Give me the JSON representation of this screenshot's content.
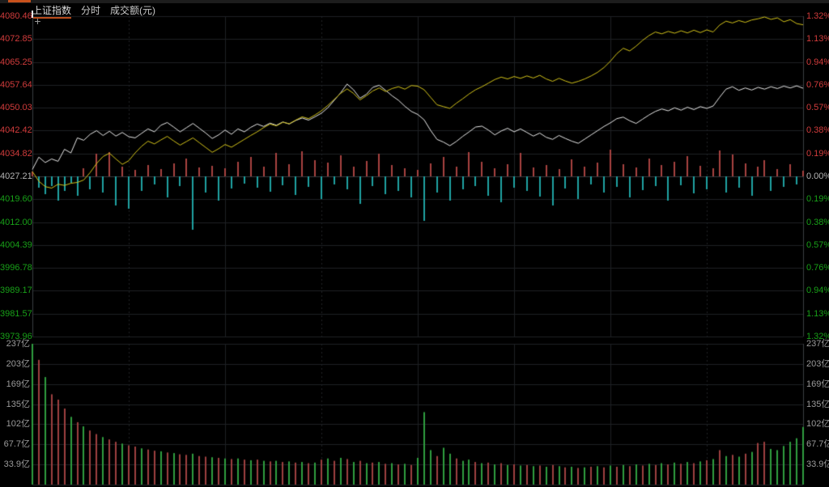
{
  "header": {
    "items": [
      {
        "label": "上证指数",
        "active": true
      },
      {
        "label": "分时",
        "active": false
      },
      {
        "label": "成交额(元)",
        "active": false
      }
    ]
  },
  "cursor": {
    "glyph": "+"
  },
  "colors": {
    "up": "#d23c3c",
    "down": "#18a018",
    "flat": "#b4b4b4",
    "volume_label": "#9a9a9a",
    "price_line": "#e8e8e8",
    "avg_line": "#d4c41a",
    "bar_up_red": "#a84341",
    "bar_down_teal": "#1fa3a3",
    "vol_up_red": "#9e4040",
    "vol_down_green": "#2f9e3f",
    "grid": "#1e2124",
    "grid_dashed": "#202326",
    "border": "#3a3e42",
    "zero_line": "#34383c",
    "accent_orange": "#c8511c"
  },
  "chart_data": {
    "type": "mixed",
    "title": "上证指数 分时 成交额(元)",
    "prev_close": 4027.21,
    "session_minutes": 242,
    "sample_interval_min": 2,
    "main_panel": {
      "type": "line",
      "y_range": [
        3973.96,
        4080.46
      ],
      "left_axis_labels": [
        "4080.46",
        "4072.85",
        "4065.25",
        "4057.64",
        "4050.03",
        "4042.42",
        "4034.82",
        "4027.21",
        "4019.60",
        "4012.00",
        "4004.39",
        "3996.78",
        "3989.17",
        "3981.57",
        "3973.96"
      ],
      "right_axis_labels": [
        "1.32%",
        "1.13%",
        "0.94%",
        "0.76%",
        "0.57%",
        "0.38%",
        "0.19%",
        "0.00%",
        "0.19%",
        "0.38%",
        "0.57%",
        "0.76%",
        "0.94%",
        "1.13%",
        "1.32%"
      ],
      "series": [
        {
          "name": "index_price_white",
          "type": "line",
          "values": [
            4029.5,
            4033.6,
            4031.8,
            4033.0,
            4032.2,
            4036.2,
            4035.0,
            4040.0,
            4039.2,
            4041.2,
            4042.4,
            4040.8,
            4042.2,
            4040.6,
            4041.8,
            4040.4,
            4040.0,
            4041.5,
            4043.0,
            4042.0,
            4044.2,
            4045.1,
            4043.6,
            4042.0,
            4043.4,
            4044.8,
            4043.2,
            4041.6,
            4039.8,
            4041.0,
            4042.6,
            4041.2,
            4043.0,
            4042.0,
            4043.5,
            4044.6,
            4043.8,
            4044.9,
            4044.2,
            4045.3,
            4044.6,
            4045.8,
            4046.6,
            4045.9,
            4047.0,
            4048.2,
            4050.0,
            4052.5,
            4055.0,
            4057.9,
            4056.0,
            4053.2,
            4054.5,
            4056.8,
            4057.5,
            4055.8,
            4054.0,
            4052.5,
            4050.5,
            4048.8,
            4047.8,
            4046.0,
            4042.5,
            4039.5,
            4038.6,
            4037.4,
            4038.8,
            4040.5,
            4042.0,
            4043.6,
            4043.9,
            4042.6,
            4041.0,
            4042.3,
            4043.2,
            4042.0,
            4043.0,
            4041.8,
            4040.6,
            4041.6,
            4040.2,
            4039.5,
            4040.8,
            4039.8,
            4038.9,
            4038.2,
            4039.6,
            4041.0,
            4042.4,
            4043.8,
            4045.0,
            4046.4,
            4046.9,
            4045.7,
            4044.8,
            4046.2,
            4047.6,
            4048.8,
            4049.6,
            4049.0,
            4050.0,
            4049.2,
            4050.2,
            4049.4,
            4050.4,
            4049.8,
            4050.6,
            4053.5,
            4056.2,
            4057.0,
            4055.8,
            4056.6,
            4055.9,
            4056.8,
            4056.2,
            4057.0,
            4056.4,
            4057.2,
            4056.6,
            4057.3,
            4056.5
          ]
        },
        {
          "name": "avg_index_yellow",
          "type": "line",
          "values": [
            4028.8,
            4025.6,
            4023.8,
            4023.3,
            4024.6,
            4024.2,
            4024.9,
            4025.2,
            4026.0,
            4028.5,
            4031.5,
            4033.8,
            4034.9,
            4033.0,
            4031.2,
            4032.4,
            4035.0,
            4037.2,
            4038.9,
            4038.0,
            4039.3,
            4040.5,
            4039.0,
            4037.6,
            4038.8,
            4040.0,
            4038.4,
            4036.8,
            4035.2,
            4036.4,
            4037.8,
            4036.9,
            4038.2,
            4039.5,
            4040.8,
            4042.0,
            4043.4,
            4044.6,
            4044.0,
            4045.2,
            4044.7,
            4045.9,
            4047.0,
            4046.4,
            4047.6,
            4049.0,
            4050.8,
            4052.8,
            4054.8,
            4056.3,
            4054.8,
            4052.6,
            4054.0,
            4055.6,
            4056.6,
            4055.4,
            4056.4,
            4057.0,
            4056.2,
            4057.4,
            4057.2,
            4056.0,
            4053.5,
            4051.0,
            4050.4,
            4049.8,
            4051.5,
            4053.0,
            4054.6,
            4056.0,
            4057.0,
            4058.2,
            4059.4,
            4060.2,
            4059.6,
            4060.4,
            4059.8,
            4060.6,
            4059.9,
            4060.8,
            4059.6,
            4058.8,
            4059.8,
            4058.9,
            4058.2,
            4058.8,
            4059.6,
            4060.6,
            4061.8,
            4063.4,
            4065.5,
            4068.0,
            4069.8,
            4068.9,
            4070.5,
            4072.4,
            4074.0,
            4075.2,
            4074.6,
            4075.4,
            4074.8,
            4075.6,
            4074.9,
            4075.8,
            4075.0,
            4075.9,
            4075.2,
            4077.5,
            4078.8,
            4078.2,
            4079.0,
            4078.4,
            4079.2,
            4079.6,
            4080.2,
            4079.4,
            4079.9,
            4078.6,
            4079.3,
            4078.0,
            4077.6
          ]
        },
        {
          "name": "net_minute_volume_bars",
          "type": "bar",
          "values": [
            6,
            -14,
            -22,
            -12,
            -30,
            -18,
            -8,
            -24,
            10,
            -16,
            28,
            -20,
            30,
            -36,
            12,
            -40,
            8,
            -18,
            14,
            -10,
            9,
            -26,
            16,
            -12,
            22,
            -66,
            11,
            -20,
            13,
            -30,
            10,
            -15,
            18,
            -9,
            24,
            -14,
            12,
            -19,
            29,
            -11,
            15,
            -23,
            31,
            -13,
            20,
            -28,
            17,
            -10,
            26,
            -16,
            12,
            -34,
            19,
            -12,
            28,
            -22,
            14,
            -18,
            10,
            -26,
            8,
            -55,
            16,
            -20,
            24,
            -30,
            12,
            -16,
            30,
            -12,
            18,
            -24,
            10,
            -32,
            15,
            -14,
            29,
            -18,
            11,
            -25,
            14,
            -36,
            9,
            -15,
            21,
            -28,
            12,
            -10,
            17,
            -20,
            33,
            -13,
            15,
            -26,
            11,
            -17,
            22,
            -12,
            14,
            -30,
            18,
            -11,
            25,
            -21,
            13,
            -16,
            10,
            32,
            -20,
            27,
            -14,
            16,
            -24,
            12,
            20,
            -18,
            9,
            -13,
            15,
            -10,
            7
          ]
        }
      ]
    },
    "volume_panel": {
      "type": "bar",
      "unit": "亿",
      "max": 237,
      "axis_labels": [
        "237亿",
        "203亿",
        "169亿",
        "135亿",
        "102亿",
        "67.7亿",
        "33.9亿"
      ],
      "bars": [
        [
          237,
          "g"
        ],
        [
          210,
          "r"
        ],
        [
          181,
          "g"
        ],
        [
          152,
          "r"
        ],
        [
          143,
          "r"
        ],
        [
          128,
          "r"
        ],
        [
          114,
          "g"
        ],
        [
          105,
          "r"
        ],
        [
          98,
          "g"
        ],
        [
          91,
          "r"
        ],
        [
          85,
          "r"
        ],
        [
          80,
          "g"
        ],
        [
          76,
          "r"
        ],
        [
          72,
          "r"
        ],
        [
          69,
          "g"
        ],
        [
          66,
          "r"
        ],
        [
          64,
          "r"
        ],
        [
          61,
          "g"
        ],
        [
          59,
          "r"
        ],
        [
          57,
          "r"
        ],
        [
          56,
          "g"
        ],
        [
          54,
          "r"
        ],
        [
          53,
          "g"
        ],
        [
          51,
          "r"
        ],
        [
          50,
          "r"
        ],
        [
          52,
          "g"
        ],
        [
          48,
          "r"
        ],
        [
          47,
          "r"
        ],
        [
          46,
          "g"
        ],
        [
          45,
          "r"
        ],
        [
          44,
          "g"
        ],
        [
          43,
          "r"
        ],
        [
          44,
          "g"
        ],
        [
          42,
          "r"
        ],
        [
          41,
          "g"
        ],
        [
          42,
          "r"
        ],
        [
          40,
          "g"
        ],
        [
          39,
          "r"
        ],
        [
          40,
          "g"
        ],
        [
          38,
          "r"
        ],
        [
          39,
          "g"
        ],
        [
          37,
          "r"
        ],
        [
          38,
          "g"
        ],
        [
          36,
          "r"
        ],
        [
          37,
          "g"
        ],
        [
          42,
          "r"
        ],
        [
          44,
          "g"
        ],
        [
          40,
          "r"
        ],
        [
          45,
          "g"
        ],
        [
          43,
          "r"
        ],
        [
          38,
          "g"
        ],
        [
          40,
          "r"
        ],
        [
          36,
          "g"
        ],
        [
          37,
          "r"
        ],
        [
          38,
          "g"
        ],
        [
          35,
          "r"
        ],
        [
          36,
          "g"
        ],
        [
          34,
          "r"
        ],
        [
          35,
          "g"
        ],
        [
          33,
          "r"
        ],
        [
          45,
          "g"
        ],
        [
          122,
          "g"
        ],
        [
          58,
          "g"
        ],
        [
          48,
          "r"
        ],
        [
          62,
          "g"
        ],
        [
          52,
          "g"
        ],
        [
          44,
          "r"
        ],
        [
          40,
          "g"
        ],
        [
          42,
          "g"
        ],
        [
          38,
          "r"
        ],
        [
          36,
          "g"
        ],
        [
          37,
          "r"
        ],
        [
          34,
          "g"
        ],
        [
          36,
          "r"
        ],
        [
          33,
          "g"
        ],
        [
          34,
          "r"
        ],
        [
          32,
          "g"
        ],
        [
          33,
          "r"
        ],
        [
          31,
          "g"
        ],
        [
          32,
          "r"
        ],
        [
          30,
          "g"
        ],
        [
          33,
          "r"
        ],
        [
          31,
          "g"
        ],
        [
          29,
          "r"
        ],
        [
          30,
          "g"
        ],
        [
          28,
          "r"
        ],
        [
          29,
          "g"
        ],
        [
          30,
          "r"
        ],
        [
          31,
          "g"
        ],
        [
          29,
          "r"
        ],
        [
          32,
          "g"
        ],
        [
          30,
          "r"
        ],
        [
          33,
          "g"
        ],
        [
          31,
          "r"
        ],
        [
          34,
          "g"
        ],
        [
          32,
          "r"
        ],
        [
          35,
          "g"
        ],
        [
          33,
          "r"
        ],
        [
          36,
          "g"
        ],
        [
          34,
          "r"
        ],
        [
          37,
          "g"
        ],
        [
          35,
          "r"
        ],
        [
          38,
          "g"
        ],
        [
          36,
          "r"
        ],
        [
          39,
          "g"
        ],
        [
          41,
          "r"
        ],
        [
          43,
          "g"
        ],
        [
          58,
          "r"
        ],
        [
          48,
          "g"
        ],
        [
          50,
          "r"
        ],
        [
          47,
          "g"
        ],
        [
          52,
          "r"
        ],
        [
          55,
          "g"
        ],
        [
          70,
          "r"
        ],
        [
          72,
          "r"
        ],
        [
          60,
          "g"
        ],
        [
          58,
          "g"
        ],
        [
          65,
          "g"
        ],
        [
          72,
          "g"
        ],
        [
          78,
          "g"
        ],
        [
          97,
          "g"
        ]
      ]
    }
  }
}
